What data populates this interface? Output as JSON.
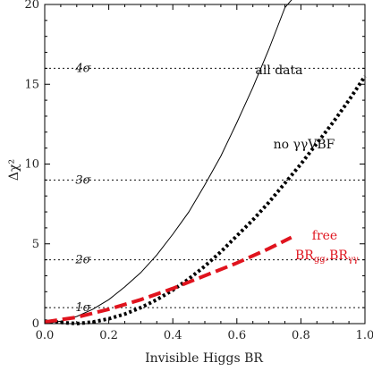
{
  "chart_data": {
    "type": "line",
    "title": "",
    "xlabel": "Invisible Higgs BR",
    "ylabel": "Δχ²",
    "xlim": [
      0,
      1
    ],
    "ylim": [
      0,
      20
    ],
    "xticks": [
      0.0,
      0.2,
      0.4,
      0.6,
      0.8,
      1.0
    ],
    "xtick_labels": [
      "0.0",
      "0.2",
      "0.4",
      "0.6",
      "0.8",
      "1.0"
    ],
    "yticks": [
      0,
      5,
      10,
      15,
      20
    ],
    "ytick_labels": [
      "0",
      "5",
      "10",
      "15",
      "20"
    ],
    "grid": false,
    "reference_lines": [
      {
        "label": "1σ",
        "y": 1
      },
      {
        "label": "2σ",
        "y": 4
      },
      {
        "label": "3σ",
        "y": 9
      },
      {
        "label": "4σ",
        "y": 16
      }
    ],
    "series": [
      {
        "name": "all data",
        "color": "#000000",
        "style": "solid",
        "x": [
          0.0,
          0.05,
          0.1,
          0.15,
          0.2,
          0.25,
          0.3,
          0.35,
          0.4,
          0.45,
          0.5,
          0.55,
          0.6,
          0.65,
          0.7,
          0.75,
          0.78
        ],
        "y": [
          0.0,
          0.15,
          0.45,
          0.9,
          1.5,
          2.3,
          3.2,
          4.3,
          5.6,
          7.0,
          8.7,
          10.5,
          12.6,
          14.8,
          17.2,
          19.8,
          20.5
        ]
      },
      {
        "name": "no γγVBF",
        "color": "#000000",
        "style": "dotted",
        "x": [
          0.0,
          0.1,
          0.15,
          0.2,
          0.25,
          0.3,
          0.35,
          0.4,
          0.45,
          0.5,
          0.55,
          0.6,
          0.65,
          0.7,
          0.75,
          0.8,
          0.85,
          0.9,
          0.95,
          1.0
        ],
        "y": [
          0.15,
          0.0,
          0.1,
          0.3,
          0.6,
          1.0,
          1.5,
          2.1,
          2.8,
          3.6,
          4.5,
          5.5,
          6.5,
          7.6,
          8.8,
          10.0,
          11.3,
          12.6,
          14.0,
          15.5
        ]
      },
      {
        "name": "free BR_gg, BR_γγ",
        "color": "#e0141e",
        "style": "dashed",
        "x": [
          0.0,
          0.1,
          0.2,
          0.3,
          0.4,
          0.5,
          0.6,
          0.7,
          0.77
        ],
        "y": [
          0.1,
          0.4,
          0.9,
          1.5,
          2.2,
          3.0,
          3.8,
          4.7,
          5.4
        ]
      }
    ],
    "annotations": {
      "all_data": "all data",
      "no_vbf": "no γγVBF",
      "free_line1": "free",
      "free_line2_a": "BR",
      "free_line2_a_sub": "gg",
      "free_line2_sep": ",BR",
      "free_line2_b_sub": "γγ"
    }
  }
}
